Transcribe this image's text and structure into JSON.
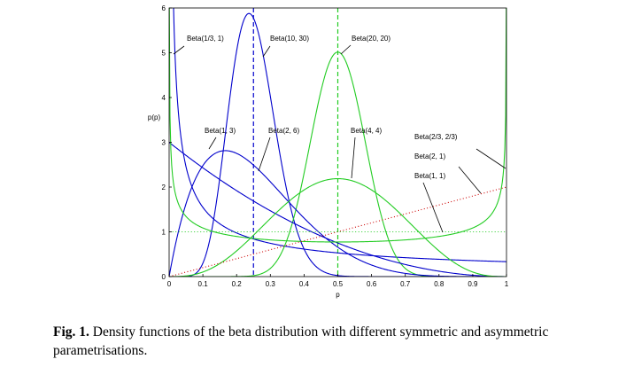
{
  "chart_data": {
    "type": "line",
    "title": "",
    "xlabel": "p",
    "ylabel": "p(p)",
    "xlim": [
      0,
      1
    ],
    "ylim": [
      0,
      6
    ],
    "x_ticks": [
      "0",
      "0.1",
      "0.2",
      "0.3",
      "0.4",
      "0.5",
      "0.6",
      "0.7",
      "0.8",
      "0.9",
      "1"
    ],
    "y_ticks": [
      "0",
      "1",
      "2",
      "3",
      "4",
      "5",
      "6"
    ],
    "grid": false,
    "series": [
      {
        "name": "Beta(1/3, 1)",
        "a": 0.3333,
        "b": 1,
        "color": "#0000cc",
        "style": "solid"
      },
      {
        "name": "Beta(10, 30)",
        "a": 10,
        "b": 30,
        "color": "#0000cc",
        "style": "solid"
      },
      {
        "name": "Beta(20, 20)",
        "a": 20,
        "b": 20,
        "color": "#22cc22",
        "style": "solid"
      },
      {
        "name": "Beta(1, 3)",
        "a": 1,
        "b": 3,
        "color": "#0000cc",
        "style": "solid"
      },
      {
        "name": "Beta(2, 6)",
        "a": 2,
        "b": 6,
        "color": "#0000cc",
        "style": "solid"
      },
      {
        "name": "Beta(4, 4)",
        "a": 4,
        "b": 4,
        "color": "#22cc22",
        "style": "solid"
      },
      {
        "name": "Beta(2/3, 2/3)",
        "a": 0.6667,
        "b": 0.6667,
        "color": "#22cc22",
        "style": "solid"
      },
      {
        "name": "Beta(2, 1)",
        "a": 2,
        "b": 1,
        "color": "#cc0000",
        "style": "dotted"
      },
      {
        "name": "Beta(1, 1)",
        "a": 1,
        "b": 1,
        "color": "#22cc22",
        "style": "dotted"
      }
    ],
    "vlines": [
      {
        "x": 0.25,
        "color": "#0000cc",
        "style": "dashed"
      },
      {
        "x": 0.5,
        "color": "#22cc22",
        "style": "dashed"
      }
    ]
  },
  "caption": {
    "prefix": "Fig. 1.",
    "text": " Density functions of the beta distribution with different symmetric and asymmetric parametrisations."
  }
}
